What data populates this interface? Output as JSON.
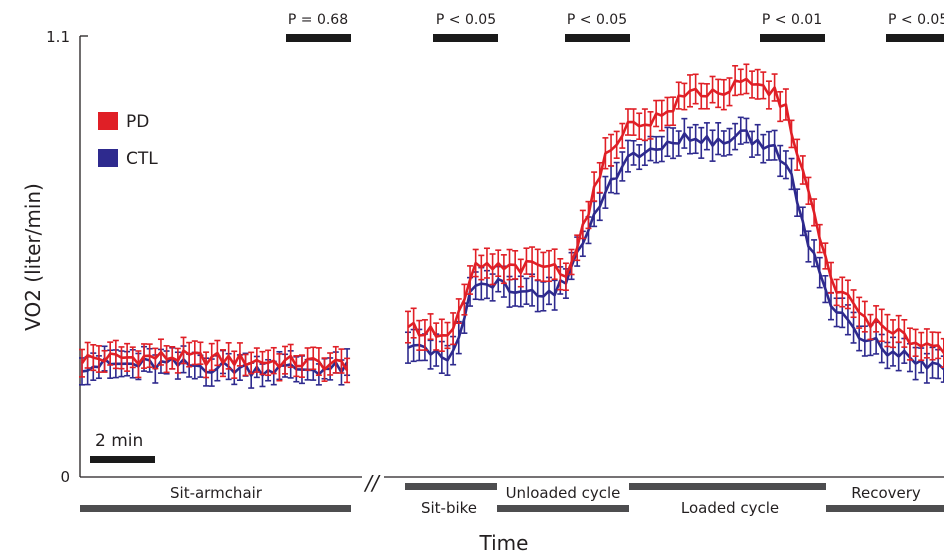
{
  "chart_data": {
    "type": "line",
    "title": "",
    "xlabel": "Time",
    "ylabel": "VO2 (liter/min)",
    "ylim": [
      0,
      1.1
    ],
    "y_ticks": [
      "0",
      "1.1"
    ],
    "axis_break": "//",
    "scale_bar": {
      "label": "2 min",
      "minutes": 2
    },
    "legend": {
      "placement": "top-left",
      "entries": [
        "PD",
        "CTL"
      ]
    },
    "colors": {
      "PD": "#e01f26",
      "CTL": "#2e2a8e",
      "axis": "#231f20",
      "bar": "#4d4d4f"
    },
    "x_units": "minutes",
    "series": [
      {
        "name": "PD",
        "segments": [
          {
            "phase": "Sit-armchair",
            "x": [
              0,
              3.2,
              6,
              9.5
            ],
            "y": [
              0.295,
              0.3,
              0.29,
              0.28
            ],
            "err": 0.03
          },
          {
            "phase": "Sit-bike to Recovery",
            "x": [
              0,
              0.5,
              1.0,
              1.3,
              1.6,
              2.0,
              2.3,
              2.5,
              3.0,
              4.0,
              5.0,
              5.5,
              6.0,
              6.5,
              7.0,
              7.5,
              8.0,
              9.0,
              10.0,
              11.0,
              12.0,
              13.0,
              13.5,
              14.0,
              14.5,
              15.0,
              16.0,
              17.0,
              18.0,
              19.0,
              19.5
            ],
            "y": [
              0.38,
              0.36,
              0.36,
              0.34,
              0.37,
              0.43,
              0.52,
              0.53,
              0.52,
              0.52,
              0.53,
              0.5,
              0.58,
              0.69,
              0.79,
              0.86,
              0.88,
              0.9,
              0.96,
              0.96,
              0.98,
              0.96,
              0.9,
              0.76,
              0.62,
              0.49,
              0.41,
              0.36,
              0.34,
              0.32,
              0.31
            ],
            "err": 0.035
          }
        ]
      },
      {
        "name": "CTL",
        "segments": [
          {
            "phase": "Sit-armchair",
            "x": [
              0,
              3.2,
              6,
              9.5
            ],
            "y": [
              0.28,
              0.28,
              0.27,
              0.27
            ],
            "err": 0.03
          },
          {
            "phase": "Sit-bike to Recovery",
            "x": [
              0,
              0.5,
              1.0,
              1.3,
              1.6,
              2.0,
              2.3,
              2.5,
              3.0,
              4.0,
              5.0,
              5.5,
              6.0,
              6.5,
              7.0,
              7.5,
              8.0,
              9.0,
              10.0,
              11.0,
              12.0,
              13.0,
              13.5,
              14.0,
              14.5,
              15.0,
              16.0,
              17.0,
              18.0,
              19.0,
              19.5
            ],
            "y": [
              0.33,
              0.31,
              0.31,
              0.29,
              0.31,
              0.38,
              0.48,
              0.5,
              0.48,
              0.47,
              0.46,
              0.48,
              0.55,
              0.64,
              0.72,
              0.77,
              0.8,
              0.82,
              0.85,
              0.84,
              0.85,
              0.82,
              0.78,
              0.64,
              0.52,
              0.43,
              0.36,
              0.31,
              0.29,
              0.27,
              0.27
            ],
            "err": 0.035
          }
        ]
      }
    ],
    "significance": [
      {
        "label": "P = 0.68"
      },
      {
        "label": "P < 0.05"
      },
      {
        "label": "P < 0.05"
      },
      {
        "label": "P < 0.01"
      },
      {
        "label": "P < 0.05"
      }
    ],
    "phases": [
      {
        "label": "Sit-armchair",
        "label_position": "above"
      },
      {
        "label": "Sit-bike",
        "label_position": "below"
      },
      {
        "label": "Unloaded cycle",
        "label_position": "above"
      },
      {
        "label": "Loaded cycle",
        "label_position": "below"
      },
      {
        "label": "Recovery",
        "label_position": "above"
      }
    ]
  }
}
